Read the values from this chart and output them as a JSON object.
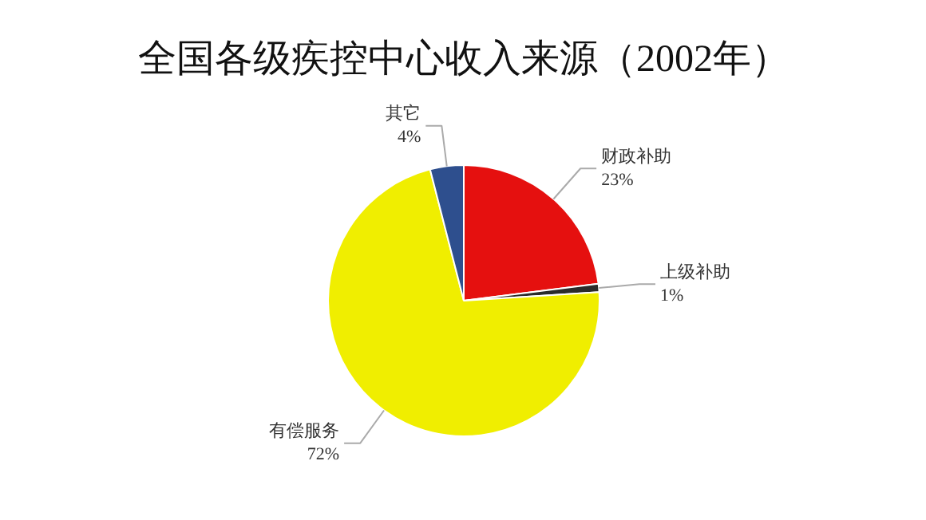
{
  "chart_data": {
    "type": "pie",
    "title": "全国各级疾控中心收入来源（2002年）",
    "categories": [
      "财政补助",
      "上级补助",
      "有偿服务",
      "其它"
    ],
    "values": [
      23,
      1,
      72,
      4
    ],
    "value_labels": [
      "23%",
      "1%",
      "72%",
      "4%"
    ],
    "colors": [
      "#e5100f",
      "#2b2b2b",
      "#f0ee00",
      "#2e4f8e"
    ]
  }
}
